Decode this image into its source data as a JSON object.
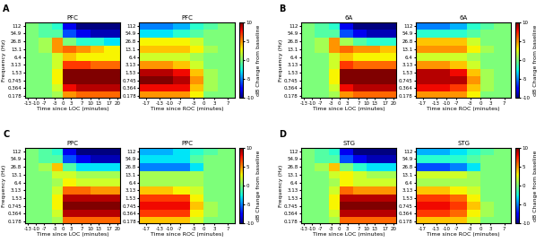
{
  "colorbar": {
    "label": "dB Change from baseline",
    "range": [
      -10,
      10
    ],
    "ticks": [
      -10,
      -5,
      0,
      5,
      10
    ]
  },
  "chart_data": [
    {
      "type": "heatmap",
      "panel": "A",
      "title": "PFC",
      "xlabel": "Time since LOC (minutes)",
      "ylabel": "Frequency (Hz)",
      "log": "y",
      "xlim": [
        -14,
        21
      ],
      "xticks": [
        -13,
        -10,
        -7,
        -3,
        0,
        3,
        7,
        10,
        13,
        17,
        20
      ],
      "ylim": [
        0.15,
        150
      ],
      "yticks": [
        0.178,
        0.364,
        0.745,
        1.53,
        3.13,
        6.4,
        13.1,
        26.8,
        54.9,
        112
      ],
      "x_edges": [
        -14,
        -9,
        -4,
        0,
        5,
        10,
        15,
        21
      ],
      "y_edges": [
        0.15,
        0.27,
        0.52,
        1.07,
        2.2,
        4.5,
        9.2,
        18.7,
        38,
        78,
        150
      ],
      "cells": [
        [
          0,
          0,
          1,
          5,
          6,
          6,
          6
        ],
        [
          0,
          0,
          2,
          8,
          9,
          9,
          9
        ],
        [
          0,
          0,
          3,
          10,
          10,
          10,
          10
        ],
        [
          0,
          0,
          3,
          10,
          10,
          10,
          10
        ],
        [
          0,
          0,
          2,
          7,
          7,
          6,
          6
        ],
        [
          0,
          0,
          2,
          4,
          3,
          3,
          3
        ],
        [
          0,
          1,
          5,
          6,
          5,
          4,
          3
        ],
        [
          0,
          1,
          5,
          0,
          -2,
          -2,
          -3
        ],
        [
          0,
          -1,
          -1,
          -6,
          -8,
          -9,
          -9
        ],
        [
          0,
          -1,
          -2,
          -8,
          -10,
          -10,
          -10
        ]
      ]
    },
    {
      "type": "heatmap",
      "title": "PFC",
      "xlabel": "Time since ROC (minutes)",
      "log": "y",
      "xlim": [
        -19,
        9
      ],
      "xticks": [
        -17,
        -13,
        -10,
        -7,
        -3,
        0,
        3,
        7
      ],
      "ylim": [
        0.15,
        150
      ],
      "yticks": [
        0.178,
        0.364,
        0.745,
        1.53,
        3.13,
        6.4,
        13.1,
        26.8,
        54.9,
        112
      ],
      "x_edges": [
        -19,
        -14,
        -9,
        -4,
        0,
        4,
        9
      ],
      "y_edges": [
        0.15,
        0.27,
        0.52,
        1.07,
        2.2,
        4.5,
        9.2,
        18.7,
        38,
        78,
        150
      ],
      "cells": [
        [
          5,
          5,
          5,
          3,
          0,
          0
        ],
        [
          8,
          8,
          8,
          4,
          1,
          0
        ],
        [
          10,
          10,
          9,
          5,
          1,
          0
        ],
        [
          9,
          9,
          8,
          4,
          1,
          0
        ],
        [
          5,
          5,
          4,
          2,
          0,
          0
        ],
        [
          2,
          2,
          2,
          1,
          0,
          0
        ],
        [
          4,
          4,
          4,
          3,
          1,
          0
        ],
        [
          3,
          3,
          3,
          2,
          0,
          0
        ],
        [
          -3,
          -3,
          -2,
          -1,
          0,
          0
        ],
        [
          -5,
          -5,
          -4,
          -2,
          -1,
          0
        ]
      ]
    },
    {
      "type": "heatmap",
      "panel": "B",
      "title": "6A",
      "xlabel": "Time since LOC (minutes)",
      "ylabel": "Frequency (Hz)",
      "log": "y",
      "xlim": [
        -14,
        21
      ],
      "xticks": [
        -13,
        -10,
        -7,
        -3,
        0,
        3,
        7,
        10,
        13,
        17,
        20
      ],
      "ylim": [
        0.15,
        150
      ],
      "yticks": [
        0.178,
        0.364,
        0.745,
        1.53,
        3.13,
        6.4,
        13.1,
        26.8,
        54.9,
        112
      ],
      "x_edges": [
        -14,
        -9,
        -4,
        0,
        5,
        10,
        15,
        21
      ],
      "y_edges": [
        0.15,
        0.27,
        0.52,
        1.07,
        2.2,
        4.5,
        9.2,
        18.7,
        38,
        78,
        150
      ],
      "cells": [
        [
          0,
          0,
          1,
          5,
          6,
          6,
          6
        ],
        [
          0,
          0,
          2,
          8,
          9,
          9,
          9
        ],
        [
          0,
          0,
          3,
          10,
          10,
          10,
          10
        ],
        [
          0,
          0,
          3,
          10,
          10,
          10,
          10
        ],
        [
          0,
          0,
          2,
          7,
          6,
          6,
          6
        ],
        [
          0,
          0,
          2,
          4,
          3,
          3,
          3
        ],
        [
          0,
          1,
          5,
          6,
          5,
          5,
          4
        ],
        [
          0,
          1,
          5,
          1,
          -1,
          -2,
          -2
        ],
        [
          0,
          -1,
          -1,
          -6,
          -8,
          -9,
          -9
        ],
        [
          0,
          -1,
          -2,
          -8,
          -10,
          -10,
          -10
        ]
      ]
    },
    {
      "type": "heatmap",
      "title": "6A",
      "xlabel": "Time since ROC (minutes)",
      "log": "y",
      "xlim": [
        -19,
        9
      ],
      "xticks": [
        -17,
        -13,
        -10,
        -7,
        -3,
        0,
        3,
        7
      ],
      "ylim": [
        0.15,
        150
      ],
      "yticks": [
        0.178,
        0.364,
        0.745,
        1.53,
        3.13,
        6.4,
        13.1,
        26.8,
        54.9,
        112
      ],
      "x_edges": [
        -19,
        -14,
        -9,
        -4,
        0,
        4,
        9
      ],
      "y_edges": [
        0.15,
        0.27,
        0.52,
        1.07,
        2.2,
        4.5,
        9.2,
        18.7,
        38,
        78,
        150
      ],
      "cells": [
        [
          5,
          5,
          5,
          3,
          0,
          0
        ],
        [
          8,
          8,
          7,
          4,
          1,
          0
        ],
        [
          9,
          9,
          9,
          5,
          1,
          0
        ],
        [
          9,
          9,
          8,
          4,
          1,
          0
        ],
        [
          5,
          5,
          4,
          2,
          0,
          0
        ],
        [
          2,
          2,
          2,
          1,
          0,
          0
        ],
        [
          5,
          5,
          5,
          3,
          1,
          0
        ],
        [
          4,
          4,
          4,
          2,
          0,
          0
        ],
        [
          -2,
          -2,
          -2,
          -1,
          0,
          0
        ],
        [
          -5,
          -5,
          -4,
          -2,
          -1,
          0
        ]
      ]
    },
    {
      "type": "heatmap",
      "panel": "C",
      "title": "PPC",
      "xlabel": "Time since LOC (minutes)",
      "ylabel": "Frequency (Hz)",
      "log": "y",
      "xlim": [
        -14,
        21
      ],
      "xticks": [
        -13,
        -10,
        -7,
        -3,
        0,
        3,
        7,
        10,
        13,
        17,
        20
      ],
      "ylim": [
        0.15,
        150
      ],
      "yticks": [
        0.178,
        0.364,
        0.745,
        1.53,
        3.13,
        6.4,
        13.1,
        26.8,
        54.9,
        112
      ],
      "x_edges": [
        -14,
        -9,
        -4,
        0,
        5,
        10,
        15,
        21
      ],
      "y_edges": [
        0.15,
        0.27,
        0.52,
        1.07,
        2.2,
        4.5,
        9.2,
        18.7,
        38,
        78,
        150
      ],
      "cells": [
        [
          0,
          0,
          1,
          6,
          6,
          6,
          6
        ],
        [
          0,
          0,
          2,
          9,
          9,
          9,
          9
        ],
        [
          0,
          0,
          3,
          10,
          10,
          10,
          10
        ],
        [
          0,
          0,
          3,
          9,
          9,
          9,
          9
        ],
        [
          0,
          0,
          2,
          6,
          6,
          5,
          5
        ],
        [
          0,
          0,
          1,
          3,
          2,
          2,
          2
        ],
        [
          0,
          0,
          2,
          2,
          1,
          1,
          1
        ],
        [
          0,
          1,
          4,
          -1,
          -3,
          -3,
          -3
        ],
        [
          0,
          -1,
          -1,
          -6,
          -8,
          -9,
          -9
        ],
        [
          0,
          -1,
          -2,
          -8,
          -10,
          -10,
          -10
        ]
      ]
    },
    {
      "type": "heatmap",
      "title": "PPC",
      "xlabel": "Time since ROC (minutes)",
      "log": "y",
      "xlim": [
        -19,
        9
      ],
      "xticks": [
        -17,
        -13,
        -10,
        -7,
        -3,
        0,
        3,
        7
      ],
      "ylim": [
        0.15,
        150
      ],
      "yticks": [
        0.178,
        0.364,
        0.745,
        1.53,
        3.13,
        6.4,
        13.1,
        26.8,
        54.9,
        112
      ],
      "x_edges": [
        -19,
        -14,
        -9,
        -4,
        0,
        4,
        9
      ],
      "y_edges": [
        0.15,
        0.27,
        0.52,
        1.07,
        2.2,
        4.5,
        9.2,
        18.7,
        38,
        78,
        150
      ],
      "cells": [
        [
          4,
          4,
          4,
          2,
          0,
          0
        ],
        [
          7,
          7,
          7,
          3,
          1,
          0
        ],
        [
          8,
          8,
          8,
          4,
          1,
          0
        ],
        [
          7,
          7,
          7,
          3,
          0,
          0
        ],
        [
          4,
          4,
          3,
          2,
          0,
          0
        ],
        [
          1,
          1,
          1,
          1,
          0,
          0
        ],
        [
          1,
          1,
          1,
          1,
          0,
          0
        ],
        [
          -5,
          -5,
          -5,
          -3,
          0,
          0
        ],
        [
          -3,
          -3,
          -3,
          -1,
          0,
          0
        ],
        [
          -4,
          -4,
          -3,
          -2,
          -1,
          0
        ]
      ]
    },
    {
      "type": "heatmap",
      "panel": "D",
      "title": "STG",
      "xlabel": "Time since LOC (minutes)",
      "ylabel": "Frequency (Hz)",
      "log": "y",
      "xlim": [
        -14,
        21
      ],
      "xticks": [
        -13,
        -10,
        -7,
        -3,
        0,
        3,
        7,
        10,
        13,
        17,
        20
      ],
      "ylim": [
        0.15,
        150
      ],
      "yticks": [
        0.178,
        0.364,
        0.745,
        1.53,
        3.13,
        6.4,
        13.1,
        26.8,
        54.9,
        112
      ],
      "x_edges": [
        -14,
        -9,
        -4,
        0,
        5,
        10,
        15,
        21
      ],
      "y_edges": [
        0.15,
        0.27,
        0.52,
        1.07,
        2.2,
        4.5,
        9.2,
        18.7,
        38,
        78,
        150
      ],
      "cells": [
        [
          0,
          0,
          1,
          6,
          6,
          6,
          6
        ],
        [
          0,
          0,
          2,
          9,
          9,
          9,
          9
        ],
        [
          0,
          0,
          3,
          10,
          10,
          10,
          10
        ],
        [
          0,
          0,
          3,
          9,
          9,
          9,
          9
        ],
        [
          0,
          0,
          2,
          6,
          5,
          5,
          5
        ],
        [
          0,
          0,
          1,
          3,
          2,
          2,
          2
        ],
        [
          0,
          0,
          2,
          3,
          2,
          1,
          1
        ],
        [
          0,
          1,
          4,
          0,
          -2,
          -3,
          -3
        ],
        [
          0,
          -1,
          -1,
          -6,
          -8,
          -9,
          -9
        ],
        [
          0,
          -1,
          -2,
          -8,
          -10,
          -10,
          -10
        ]
      ]
    },
    {
      "type": "heatmap",
      "title": "STG",
      "xlabel": "Time since ROC (minutes)",
      "log": "y",
      "xlim": [
        -19,
        9
      ],
      "xticks": [
        -17,
        -13,
        -10,
        -7,
        -3,
        0,
        3,
        7
      ],
      "ylim": [
        0.15,
        150
      ],
      "yticks": [
        0.178,
        0.364,
        0.745,
        1.53,
        3.13,
        6.4,
        13.1,
        26.8,
        54.9,
        112
      ],
      "x_edges": [
        -19,
        -14,
        -9,
        -4,
        0,
        4,
        9
      ],
      "y_edges": [
        0.15,
        0.27,
        0.52,
        1.07,
        2.2,
        4.5,
        9.2,
        18.7,
        38,
        78,
        150
      ],
      "cells": [
        [
          4,
          4,
          4,
          2,
          0,
          0
        ],
        [
          7,
          7,
          6,
          3,
          1,
          0
        ],
        [
          8,
          8,
          7,
          4,
          1,
          0
        ],
        [
          7,
          7,
          6,
          3,
          0,
          0
        ],
        [
          4,
          4,
          3,
          2,
          0,
          0
        ],
        [
          1,
          1,
          1,
          1,
          0,
          0
        ],
        [
          2,
          2,
          2,
          1,
          0,
          0
        ],
        [
          -6,
          -6,
          -5,
          -3,
          0,
          0
        ],
        [
          -2,
          -2,
          -2,
          -1,
          0,
          0
        ],
        [
          -4,
          -4,
          -3,
          -2,
          -1,
          0
        ]
      ]
    }
  ]
}
